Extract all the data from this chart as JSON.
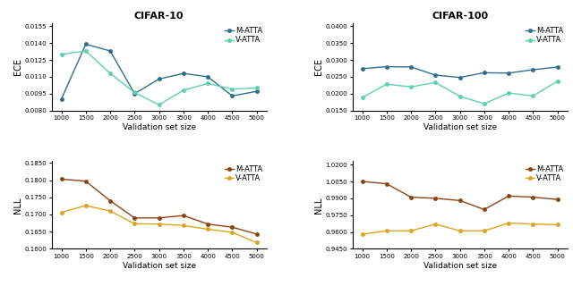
{
  "x": [
    1000,
    1500,
    2000,
    2500,
    3000,
    3500,
    4000,
    4500,
    5000
  ],
  "cifar10_ece_matta": [
    0.009,
    0.0139,
    0.0133,
    0.0095,
    0.0108,
    0.0113,
    0.011,
    0.0093,
    0.0097
  ],
  "cifar10_ece_vatta": [
    0.013,
    0.0133,
    0.0113,
    0.0096,
    0.0085,
    0.0098,
    0.0104,
    0.0099,
    0.01
  ],
  "cifar100_ece_matta": [
    0.0274,
    0.028,
    0.0279,
    0.0255,
    0.0248,
    0.0262,
    0.0261,
    0.0271,
    0.0279
  ],
  "cifar100_ece_vatta": [
    0.0188,
    0.0228,
    0.022,
    0.0233,
    0.0192,
    0.017,
    0.0202,
    0.0193,
    0.0237
  ],
  "cifar10_nll_matta": [
    0.1803,
    0.1797,
    0.174,
    0.169,
    0.169,
    0.1697,
    0.1672,
    0.1663,
    0.1643
  ],
  "cifar10_nll_vatta": [
    0.1706,
    0.1726,
    0.171,
    0.1673,
    0.1672,
    0.1668,
    0.1657,
    0.1648,
    0.1618
  ],
  "cifar100_nll_matta": [
    1.005,
    1.003,
    0.991,
    0.99,
    0.988,
    0.98,
    0.992,
    0.991,
    0.989
  ],
  "cifar100_nll_vatta": [
    0.958,
    0.961,
    0.961,
    0.967,
    0.961,
    0.961,
    0.968,
    0.967,
    0.9665
  ],
  "color_matta_ece": "#2E6E8E",
  "color_vatta_ece": "#5ECFB0",
  "color_matta_nll": "#8B4513",
  "color_vatta_nll": "#DAA520"
}
